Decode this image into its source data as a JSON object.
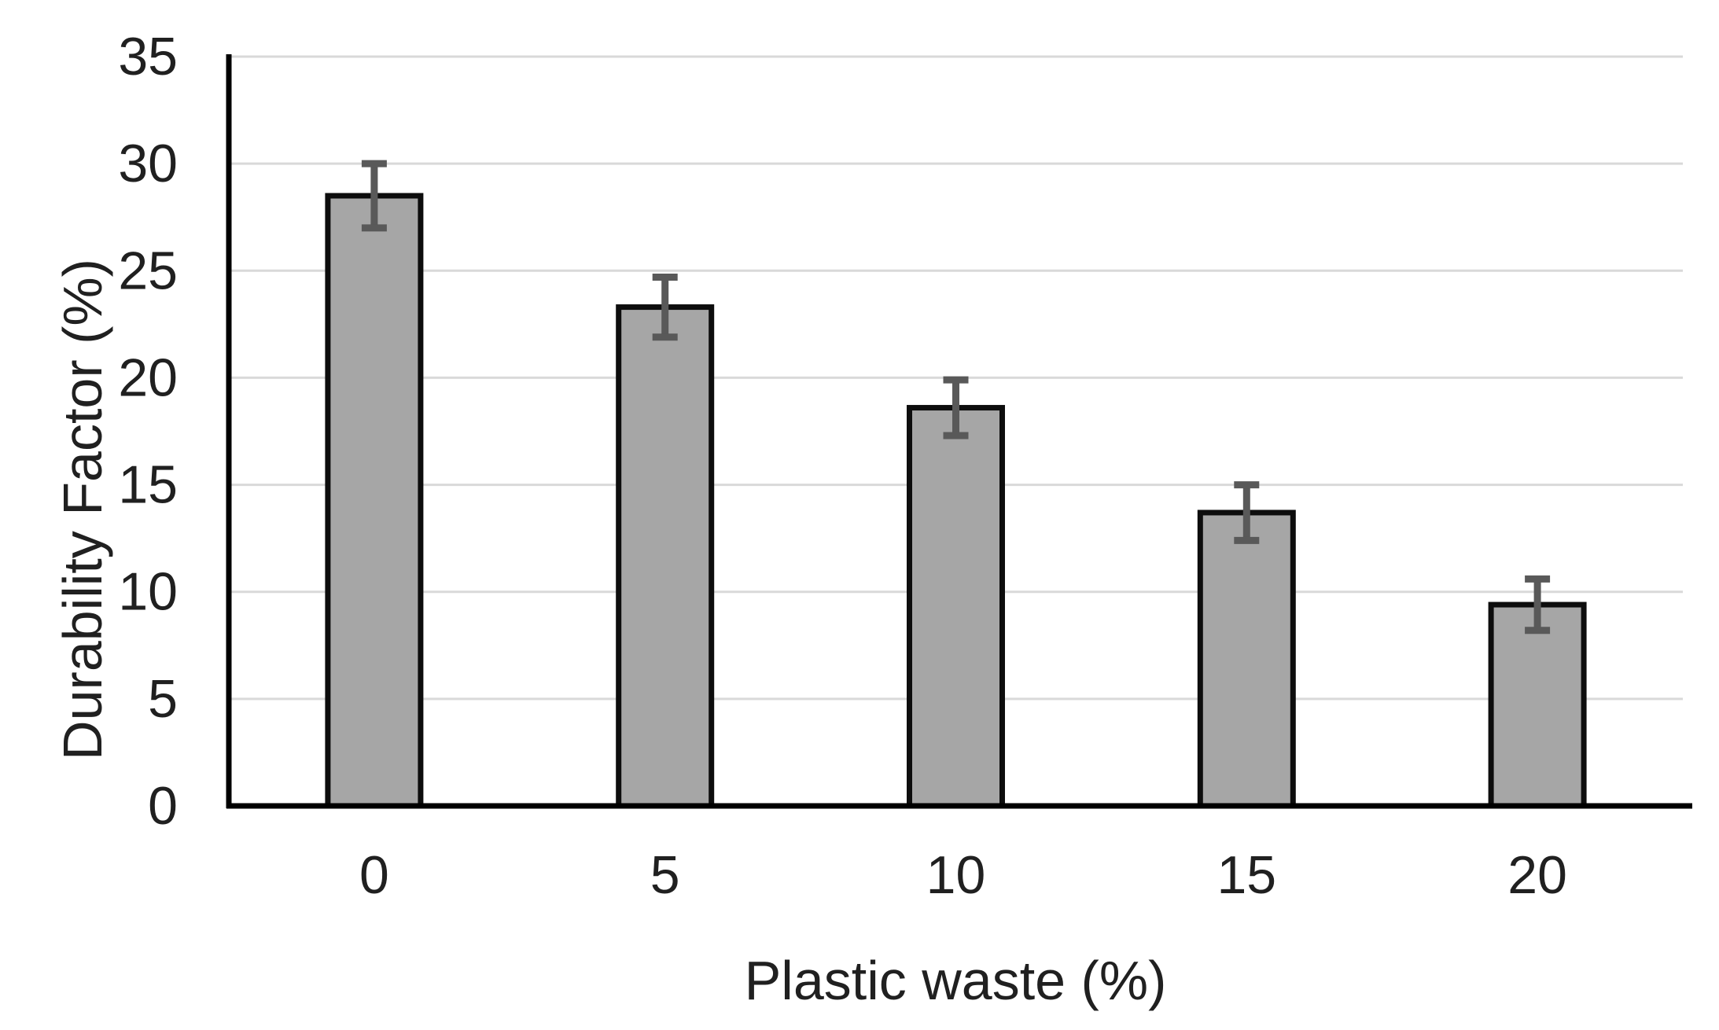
{
  "figure": {
    "background": "#ffffff"
  },
  "chart_data": {
    "type": "bar",
    "title": "",
    "xlabel": "Plastic waste (%)",
    "ylabel": "Durability Factor (%)",
    "categories": [
      "0",
      "5",
      "10",
      "15",
      "20"
    ],
    "values": [
      28.5,
      23.3,
      18.6,
      13.7,
      9.4
    ],
    "error_bars": [
      1.5,
      1.4,
      1.3,
      1.3,
      1.2
    ],
    "series_name": "Durability Factor",
    "ylim": [
      0,
      35
    ],
    "ytick_step": 5,
    "yticks": [
      0,
      5,
      10,
      15,
      20,
      25,
      30,
      35
    ],
    "grid": "horizontal-light",
    "legend": "none",
    "colors": {
      "bar_fill": "#a6a6a6",
      "bar_border": "#0d0d0d",
      "error_bar": "#595959",
      "gridline": "#d9d9d9",
      "axis": "#000000",
      "text": "#202020"
    }
  }
}
